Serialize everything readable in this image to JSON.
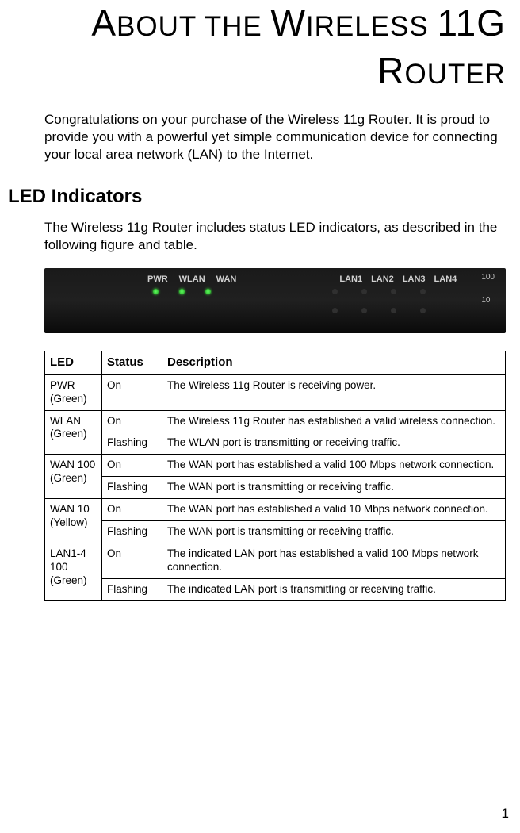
{
  "title": {
    "line1_parts": [
      {
        "cap": "A",
        "rest": "BOUT"
      },
      {
        "plain": " "
      },
      {
        "cap": "",
        "rest": "THE"
      },
      {
        "plain": " "
      },
      {
        "cap": "W",
        "rest": "IRELESS"
      },
      {
        "plain": " "
      },
      {
        "cap": "11",
        "rest": ""
      },
      {
        "cap": "G",
        "rest": ""
      }
    ],
    "line2_parts": [
      {
        "cap": "R",
        "rest": "OUTER"
      }
    ]
  },
  "intro": "Congratulations on your purchase of the Wireless 11g Router. It is proud to provide you with a powerful yet simple communication device for connecting your local area network (LAN) to the Internet.",
  "section_heading": "LED Indicators",
  "section_text": "The Wireless 11g Router includes status LED indicators, as described in the following figure and table.",
  "router_image": {
    "left_labels": [
      "PWR",
      "WLAN",
      "WAN"
    ],
    "right_labels": [
      "LAN1",
      "LAN2",
      "LAN3",
      "LAN4"
    ],
    "speed_labels": [
      "100",
      "10"
    ]
  },
  "table": {
    "headers": [
      "LED",
      "Status",
      "Description"
    ],
    "rows": [
      {
        "led": "PWR (Green)",
        "led_rowspan": 1,
        "status": "On",
        "desc": "The Wireless 11g Router is receiving power."
      },
      {
        "led": "WLAN (Green)",
        "led_rowspan": 2,
        "status": "On",
        "desc": "The Wireless 11g Router has established a valid wireless connection."
      },
      {
        "status": "Flashing",
        "desc": "The WLAN port is transmitting or receiving traffic."
      },
      {
        "led": "WAN 100 (Green)",
        "led_rowspan": 2,
        "status": "On",
        "desc": "The WAN port has established a valid 100 Mbps network connection."
      },
      {
        "status": "Flashing",
        "desc": "The WAN port is transmitting or receiving traffic."
      },
      {
        "led": "WAN 10 (Yellow)",
        "led_rowspan": 2,
        "status": "On",
        "desc": "The WAN port has established a valid 10 Mbps network connection."
      },
      {
        "status": "Flashing",
        "desc": "The WAN port is transmitting or receiving traffic."
      },
      {
        "led": "LAN1-4\n100 (Green)",
        "led_rowspan": 2,
        "status": "On",
        "desc": "The indicated LAN port has established a valid 100 Mbps network connection."
      },
      {
        "status": "Flashing",
        "desc": "The indicated LAN port is transmitting or receiving traffic."
      }
    ]
  },
  "page_number": "1"
}
